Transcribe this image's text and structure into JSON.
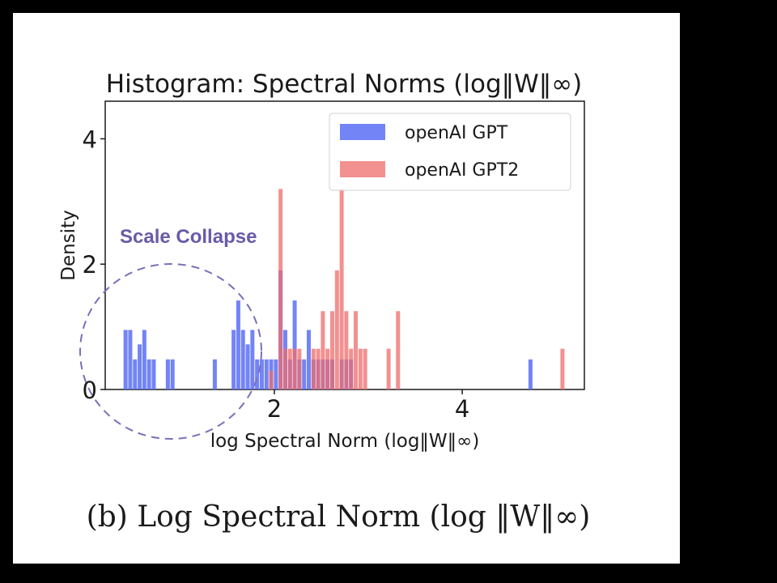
{
  "chart_data": {
    "type": "bar",
    "title": "Histogram: Spectral Norms (log‖W‖∞)",
    "xlabel": "log Spectral Norm (log‖W‖∞)",
    "ylabel": "Density",
    "xlim": [
      0.2,
      5.3
    ],
    "ylim": [
      0,
      4.6
    ],
    "xticks": [
      {
        "value": 2,
        "label": "2"
      },
      {
        "value": 4,
        "label": "4"
      }
    ],
    "yticks": [
      {
        "value": 0,
        "label": "0"
      },
      {
        "value": 2,
        "label": "2"
      },
      {
        "value": 4,
        "label": "4"
      }
    ],
    "bin_width": 0.05,
    "legend_position": "top-right",
    "series": [
      {
        "name": "openAI GPT",
        "color": "#5b6ef5",
        "opacity": 0.85,
        "bins": [
          {
            "x": 0.42,
            "y": 0.95
          },
          {
            "x": 0.47,
            "y": 0.95
          },
          {
            "x": 0.52,
            "y": 0.48
          },
          {
            "x": 0.57,
            "y": 0.72
          },
          {
            "x": 0.62,
            "y": 0.95
          },
          {
            "x": 0.67,
            "y": 0.48
          },
          {
            "x": 0.72,
            "y": 0.48
          },
          {
            "x": 0.87,
            "y": 0.48
          },
          {
            "x": 0.92,
            "y": 0.48
          },
          {
            "x": 1.37,
            "y": 0.48
          },
          {
            "x": 1.57,
            "y": 0.95
          },
          {
            "x": 1.62,
            "y": 1.42
          },
          {
            "x": 1.67,
            "y": 0.95
          },
          {
            "x": 1.72,
            "y": 0.72
          },
          {
            "x": 1.77,
            "y": 0.95
          },
          {
            "x": 1.82,
            "y": 0.48
          },
          {
            "x": 1.87,
            "y": 0.48
          },
          {
            "x": 1.92,
            "y": 0.48
          },
          {
            "x": 1.97,
            "y": 0.48
          },
          {
            "x": 2.02,
            "y": 0.48
          },
          {
            "x": 2.07,
            "y": 1.9
          },
          {
            "x": 2.12,
            "y": 0.95
          },
          {
            "x": 2.17,
            "y": 0.48
          },
          {
            "x": 2.22,
            "y": 1.42
          },
          {
            "x": 2.27,
            "y": 0.48
          },
          {
            "x": 2.32,
            "y": 0.48
          },
          {
            "x": 2.37,
            "y": 0.95
          },
          {
            "x": 2.42,
            "y": 0.48
          },
          {
            "x": 2.47,
            "y": 0.48
          },
          {
            "x": 2.52,
            "y": 0.48
          },
          {
            "x": 2.57,
            "y": 0.48
          },
          {
            "x": 2.62,
            "y": 0.48
          },
          {
            "x": 2.72,
            "y": 0.48
          },
          {
            "x": 2.77,
            "y": 0.48
          },
          {
            "x": 2.82,
            "y": 0.48
          },
          {
            "x": 4.73,
            "y": 0.48
          }
        ]
      },
      {
        "name": "openAI GPT2",
        "color": "#ef6b6b",
        "opacity": 0.75,
        "bins": [
          {
            "x": 1.97,
            "y": 0.3
          },
          {
            "x": 2.07,
            "y": 3.2
          },
          {
            "x": 2.12,
            "y": 0.65
          },
          {
            "x": 2.17,
            "y": 0.65
          },
          {
            "x": 2.22,
            "y": 0.65
          },
          {
            "x": 2.27,
            "y": 0.65
          },
          {
            "x": 2.42,
            "y": 0.65
          },
          {
            "x": 2.47,
            "y": 0.65
          },
          {
            "x": 2.52,
            "y": 1.25
          },
          {
            "x": 2.57,
            "y": 0.65
          },
          {
            "x": 2.62,
            "y": 1.25
          },
          {
            "x": 2.67,
            "y": 1.9
          },
          {
            "x": 2.72,
            "y": 3.2
          },
          {
            "x": 2.77,
            "y": 1.25
          },
          {
            "x": 2.82,
            "y": 0.65
          },
          {
            "x": 2.87,
            "y": 1.25
          },
          {
            "x": 2.92,
            "y": 0.65
          },
          {
            "x": 2.97,
            "y": 0.65
          },
          {
            "x": 3.22,
            "y": 0.65
          },
          {
            "x": 3.32,
            "y": 1.25
          },
          {
            "x": 5.07,
            "y": 0.65
          }
        ]
      }
    ],
    "annotation": {
      "text": "Scale Collapse",
      "color": "#6a5aa8"
    }
  },
  "caption": "(b) Log Spectral Norm (log ‖W‖∞)"
}
